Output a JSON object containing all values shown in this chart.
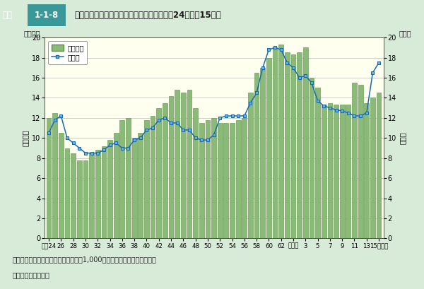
{
  "title_box": "図表 ◆ 1-1-8",
  "title_main": "刑法犯少年の検挙人員，人口比の推移（昭和24～平成15年）",
  "header_bg": "#5bbcbc",
  "chart_bg": "#fffff0",
  "outer_bg": "#d8ead8",
  "note1": "（注）　人口比とは，同年齢層の人口1,000人当たりの検挙人員をいう。",
  "note2": "（資料）警察庁調べ",
  "bar_color": "#8aba78",
  "bar_edge_color": "#5a9048",
  "line_color": "#1a6ab0",
  "marker_face_color": "#60b8e8",
  "marker_edge_color": "#1a6ab0",
  "legend_bar_label": "検挙人員",
  "legend_line_label": "人口比",
  "ylabel_left_top": "（万人）",
  "ylabel_right_top": "（人）",
  "ylabel_left": "検挙人員",
  "ylabel_right": "人口比",
  "ylim": [
    0,
    20
  ],
  "years": [
    1949,
    1950,
    1951,
    1952,
    1953,
    1954,
    1955,
    1956,
    1957,
    1958,
    1959,
    1960,
    1961,
    1962,
    1963,
    1964,
    1965,
    1966,
    1967,
    1968,
    1969,
    1970,
    1971,
    1972,
    1973,
    1974,
    1975,
    1976,
    1977,
    1978,
    1979,
    1980,
    1981,
    1982,
    1983,
    1984,
    1985,
    1986,
    1987,
    1988,
    1989,
    1990,
    1991,
    1992,
    1993,
    1994,
    1995,
    1996,
    1997,
    1998,
    1999,
    2000,
    2001,
    2002,
    2003
  ],
  "bar_values": [
    12.0,
    12.5,
    10.5,
    9.0,
    8.5,
    7.8,
    7.8,
    8.5,
    8.8,
    9.2,
    9.8,
    10.5,
    11.8,
    12.0,
    10.0,
    10.5,
    11.8,
    12.2,
    13.0,
    13.5,
    14.2,
    14.8,
    14.5,
    14.8,
    13.0,
    11.5,
    11.8,
    12.0,
    11.5,
    11.5,
    11.5,
    11.8,
    12.0,
    14.5,
    16.5,
    17.0,
    18.0,
    19.0,
    19.3,
    18.5,
    18.3,
    18.5,
    19.0,
    16.0,
    15.0,
    13.3,
    13.5,
    13.3,
    13.3,
    13.3,
    15.5,
    15.3,
    13.5,
    14.0,
    14.5
  ],
  "line_values": [
    10.5,
    11.8,
    12.2,
    10.0,
    9.5,
    9.0,
    8.5,
    8.5,
    8.5,
    8.8,
    9.3,
    9.5,
    9.0,
    9.0,
    9.8,
    10.0,
    10.8,
    11.0,
    11.8,
    12.0,
    11.5,
    11.5,
    10.8,
    10.8,
    10.0,
    9.8,
    9.8,
    10.3,
    12.0,
    12.2,
    12.2,
    12.2,
    12.2,
    13.5,
    14.5,
    17.0,
    18.8,
    19.0,
    18.8,
    17.5,
    17.0,
    16.0,
    16.2,
    15.5,
    13.7,
    13.2,
    13.0,
    12.8,
    12.7,
    12.5,
    12.2,
    12.2,
    12.5,
    16.5,
    17.5
  ],
  "xtick_positions": [
    1949,
    1951,
    1953,
    1955,
    1957,
    1959,
    1961,
    1963,
    1965,
    1967,
    1969,
    1971,
    1973,
    1975,
    1977,
    1979,
    1981,
    1983,
    1985,
    1987,
    1989,
    1991,
    1993,
    1995,
    1997,
    1999,
    2001,
    2003
  ],
  "xtick_labels": [
    "昭和24",
    "26",
    "28",
    "30",
    "32",
    "34",
    "36",
    "38",
    "40",
    "42",
    "44",
    "46",
    "48",
    "50",
    "52",
    "54",
    "56",
    "58",
    "60",
    "62",
    "平成元",
    "3",
    "5",
    "7",
    "9",
    "11",
    "13",
    "15（年）"
  ]
}
